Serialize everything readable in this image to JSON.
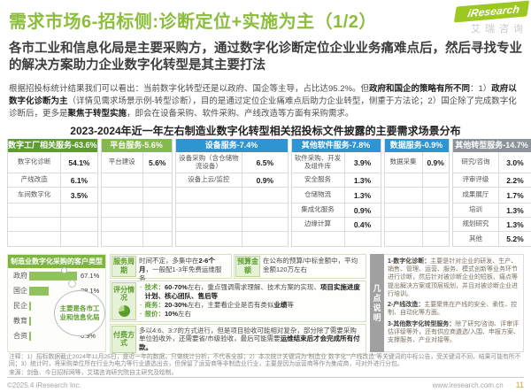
{
  "header": {
    "title": "需求市场6-招标侧:诊断定位+实施为主（1/2）",
    "logo_brand": "iResearch",
    "logo_cn": "艾瑞咨询"
  },
  "subtitle": "各市工业和信息化局是主要采购方，通过数字化诊断定位企业业务痛难点后，然后寻找专业的解决方案助力企业数字化转型是其主要打法",
  "intro": [
    {
      "t": "根据招投标统计结果我们可以看出：当前数字化转型还是以政府、国企等主导，占比达95.2%。但"
    },
    {
      "t": "政府和国企的策略有所不同",
      "b": true
    },
    {
      "t": "：1）"
    },
    {
      "t": "政府以数字化诊断为主",
      "b": true
    },
    {
      "t": "（详情见需求场景示例-转型诊断），目的是通过定位企业痛难点后助力企业转型，侧重于方法论；2）国企除了完成数字化诊断后，更多是"
    },
    {
      "t": "聚焦于转型实施",
      "b": true
    },
    {
      "t": "，即会在设备采购、软件采购、产线改造等方面有采购需求。"
    }
  ],
  "chart_title": "2023-2024年近一年左右制造业数字化转型相关招投标文件披露的主要需求场景分布",
  "chart_data": [
    {
      "type": "table",
      "title": "2023-2024年近一年左右制造业数字化转型相关招投标文件披露的主要需求场景分布",
      "groups": [
        {
          "name": "数字工厂相关服务-63.6%",
          "color": "#5c9c30",
          "width": 94,
          "items": [
            {
              "label": "数字化诊断",
              "value": "54.1%"
            },
            {
              "label": "产线改造",
              "value": "6.1%"
            },
            {
              "label": "车间数字化",
              "value": "3.5%"
            }
          ]
        },
        {
          "name": "平台服务-5.6%",
          "color": "#83b94d",
          "width": 81,
          "items": [
            {
              "label": "平台建设",
              "value": "5.6%"
            }
          ]
        },
        {
          "name": "设备服务-7.4%",
          "color": "#2e94d2",
          "width": 128,
          "items": [
            {
              "label": "设备采购（含仓储物流设备）",
              "value": "6.5%"
            },
            {
              "label": "设备上云/监控",
              "value": "0.9%"
            }
          ]
        },
        {
          "name": "其他软件服务-7.8%",
          "color": "#2e94d2",
          "width": 102,
          "items": [
            {
              "label": "软件采购、开发及组件库",
              "value": "3.9%"
            },
            {
              "label": "安全服务",
              "value": "1.3%"
            },
            {
              "label": "仓储物流",
              "value": "1.3%"
            },
            {
              "label": "集成化服务",
              "value": "0.9%"
            },
            {
              "label": "边缘计算",
              "value": "0.4%"
            }
          ]
        },
        {
          "name": "数据服务-0.9%",
          "color": "#2e94d2",
          "width": 74,
          "items": [
            {
              "label": "数据采集",
              "value": "0.9%"
            }
          ]
        },
        {
          "name": "其他转型服务-14.7%",
          "color": "#8c939a",
          "width": 90,
          "items": [
            {
              "label": "研究/咨询",
              "value": "3.0%"
            },
            {
              "label": "评审评级",
              "value": "2.2%"
            },
            {
              "label": "成果展厅",
              "value": "1.7%"
            },
            {
              "label": "培训",
              "value": "1.3%"
            },
            {
              "label": "规划研究",
              "value": "1.3%"
            },
            {
              "label": "其他",
              "value": "5.2%"
            }
          ]
        }
      ]
    },
    {
      "type": "bar",
      "title": "制造业数字化采购的客户类型",
      "categories": [
        "政府",
        "国企",
        "民企",
        "教育",
        "合资"
      ],
      "values": [
        67.1,
        28.1,
        2.6,
        1.3,
        0.9
      ],
      "unit": "%",
      "bar_color": "#90c35b",
      "annotation": "主要是各市工业和信息化局"
    }
  ],
  "panels": {
    "service_period": {
      "label": "服务周期",
      "segments": [
        {
          "t": "时间不定，多集中在"
        },
        {
          "t": "2-6个月",
          "b": true
        },
        {
          "t": "，一般配1-3年免费运维服务"
        }
      ]
    },
    "budget": {
      "label": "预算金额",
      "segments": [
        {
          "t": "在公布的预算/中标金额中，平均金额120万左右"
        }
      ]
    },
    "scoring": {
      "label": "评分情况",
      "bullets": [
        [
          {
            "t": "技术：",
            "b": true,
            "g": true
          },
          {
            "t": "60-70%",
            "b": true
          },
          {
            "t": "左右，重点强调需求理解、技术方案的实现、"
          },
          {
            "t": "项目实施进度计划、核心团队、售后等",
            "b": true
          }
        ],
        [
          {
            "t": "商务：",
            "b": true,
            "g": true
          },
          {
            "t": "20-30%",
            "b": true
          },
          {
            "t": "左右，主要看企业是否有类似"
          },
          {
            "t": "业绩",
            "b": true
          },
          {
            "t": "等"
          }
        ],
        [
          {
            "t": "报价：",
            "b": true,
            "g": true
          },
          {
            "t": "10%",
            "b": true
          },
          {
            "t": "左右"
          }
        ]
      ]
    },
    "payment": {
      "label": "付费方式",
      "segments": [
        {
          "t": "多以4:6、3:7的方式进行，但是项目验收可能相对复杂，部分除了需要采购单位验收外，还需要省/市级验收，最后可能需要"
        },
        {
          "t": "运维结束后才会完成所有付款。",
          "b": true
        }
      ]
    },
    "notes_tab": "几点说明",
    "notes": [
      {
        "head": "1-数字化诊断：",
        "body": "主要是针对企业的研发、生产、销售、管理、运营、服务、模式创新等业务环节进行诊断，然后针对被诊断企业的短板、痛点等提出解决方案或顶层规划，并且对被诊断企业进行培训。"
      },
      {
        "head": "2-产线改造：",
        "body": "主要聚焦在产线的安全、柔性、控制、自动化等方面。"
      },
      {
        "head": "3-其他数字化转型服务：",
        "body": "除了研究/咨询、评审评估评级等外，还有供应商遴选/入围、申报方案、支撑服务、产业对接等。"
      }
    ]
  },
  "footer": {
    "note": "注释：1）招标数据截止2024年11月25日，是近一年的数据，只做统计分析，不代表全部；2）本次统计关键词为“制造业 数字化”“产线改造”等关键词的中标公告，受关键词不同，结果可能有所不同；3）统计时，将采购单位所在行业为电力等行业遴选出去，但保留了运营商等非制造业行业，主要是因为运营商等作为集成商，可对外进行分包。",
    "source": "来源：剑鱼、今日招标网等，艾瑞咨询研究院自主研究及绘制。",
    "copyright": "©2025.4 iResearch Inc.",
    "site": "www.iresearch.com.cn",
    "page": "11"
  }
}
